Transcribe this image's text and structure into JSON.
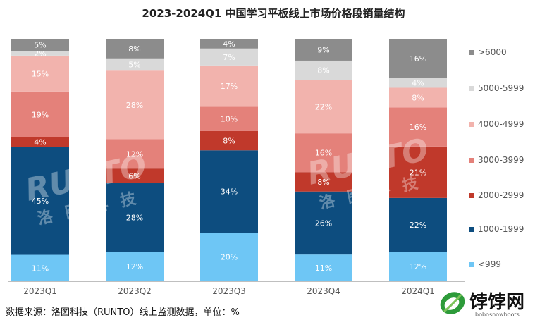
{
  "title": "2023-2024Q1 中国学习平板线上市场价格段销量结构",
  "source": "数据来源：洛图科技（RUNTO）线上监测数据，单位：%",
  "watermark": {
    "latin": "RUNTO",
    "chinese": "洛图科技"
  },
  "logo": {
    "name": "饽饽网",
    "domain": "bobosnowboots"
  },
  "chart_data": {
    "type": "bar",
    "stacked": true,
    "unit": "%",
    "categories": [
      "2023Q1",
      "2023Q2",
      "2023Q3",
      "2023Q4",
      "2024Q1"
    ],
    "ylim": [
      0,
      100
    ],
    "grid": false,
    "legend_position": "right",
    "series": [
      {
        "name": "<999",
        "color": "#6ec6f5",
        "values": [
          11,
          12,
          20,
          11,
          12
        ]
      },
      {
        "name": "1000-1999",
        "color": "#0d4d7f",
        "values": [
          45,
          28,
          34,
          26,
          22
        ]
      },
      {
        "name": "2000-2999",
        "color": "#c0392b",
        "values": [
          4,
          6,
          8,
          8,
          21
        ]
      },
      {
        "name": "3000-3999",
        "color": "#e4817a",
        "values": [
          19,
          12,
          10,
          16,
          16
        ]
      },
      {
        "name": "4000-4999",
        "color": "#f2b3ad",
        "values": [
          15,
          28,
          17,
          22,
          8
        ]
      },
      {
        "name": "5000-5999",
        "color": "#d9d9d9",
        "values": [
          2,
          5,
          7,
          8,
          4
        ]
      },
      {
        "name": ">6000",
        "color": "#8c8c8c",
        "values": [
          5,
          8,
          4,
          9,
          16
        ]
      }
    ]
  }
}
